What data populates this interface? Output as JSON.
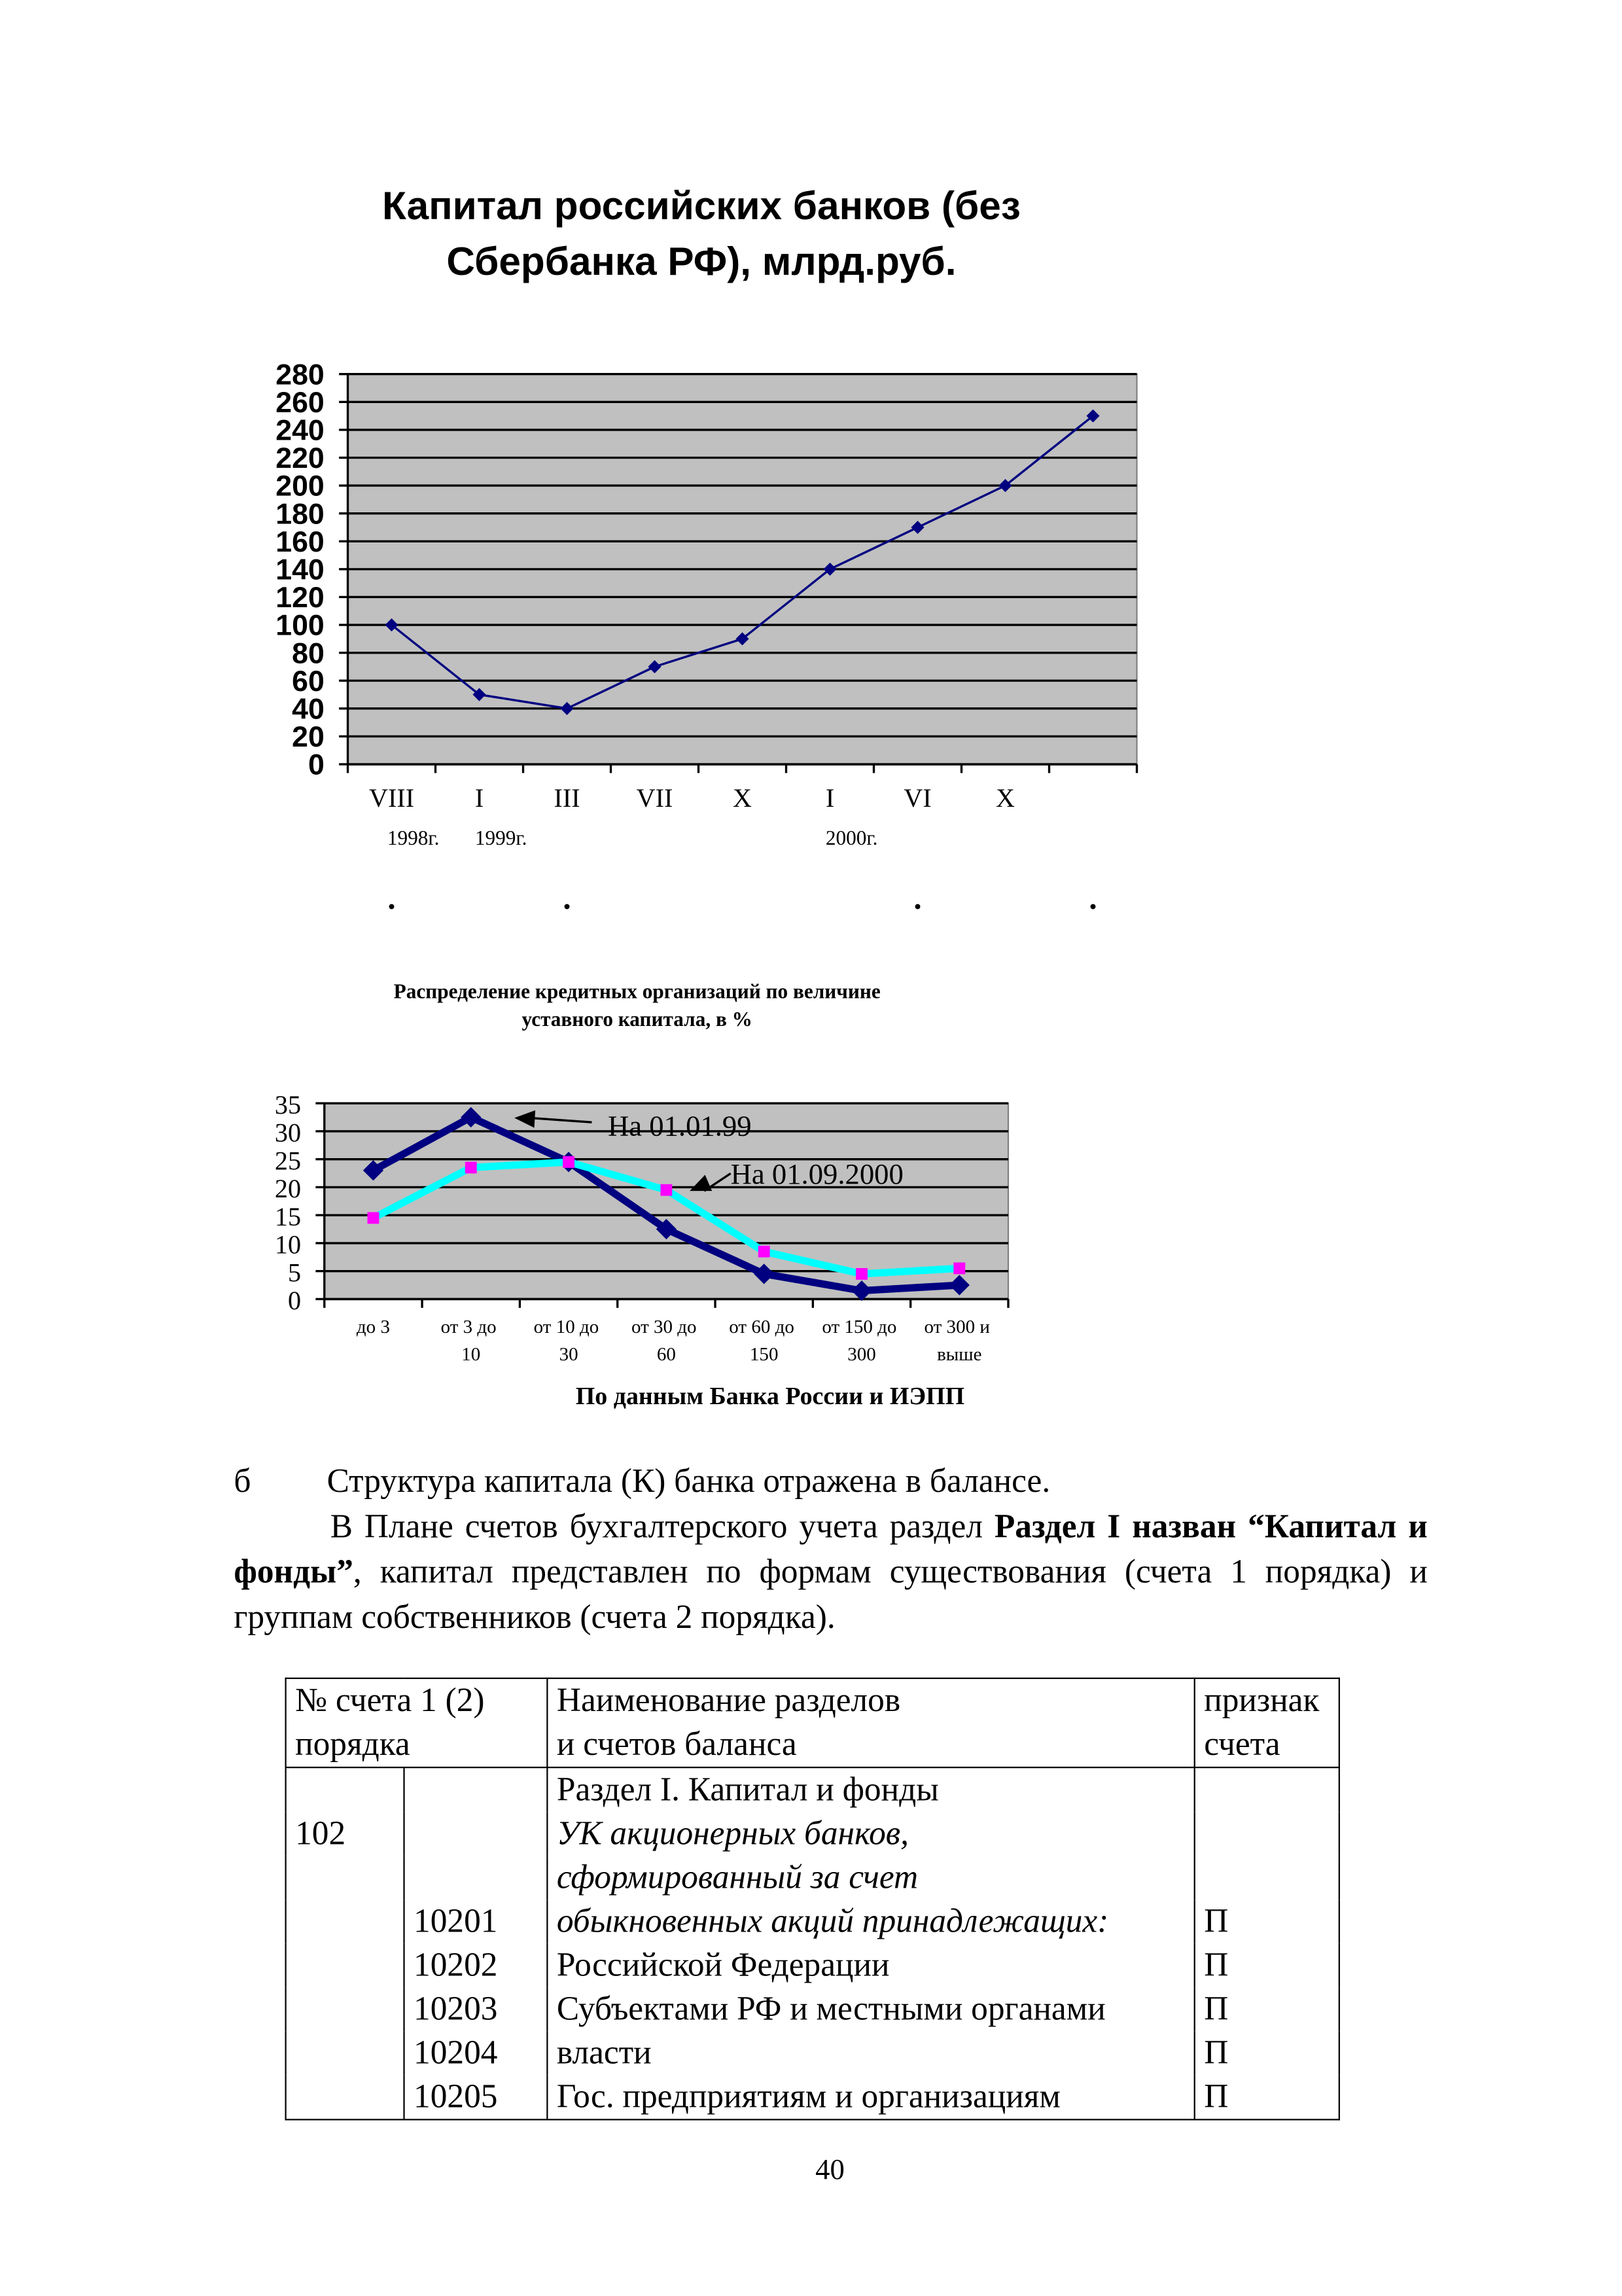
{
  "chart_data": [
    {
      "type": "line",
      "title": [
        "Капитал российских банков (без",
        "Сбербанка РФ), млрд.руб."
      ],
      "categories": [
        "VIII",
        "I",
        "III",
        "VII",
        "X",
        "I",
        "VI",
        "X",
        null
      ],
      "sublabels": [
        "1998г.",
        "1999г.",
        null,
        null,
        null,
        "2000г.",
        null,
        null,
        null
      ],
      "marks_below": [
        ".",
        ".",
        ".",
        "."
      ],
      "series": [
        {
          "name": null,
          "color": "#000080",
          "values": [
            100,
            50,
            40,
            70,
            90,
            140,
            170,
            200,
            250
          ]
        }
      ],
      "ylim": [
        0,
        280
      ],
      "yticks": [
        0,
        20,
        40,
        60,
        80,
        100,
        120,
        140,
        160,
        180,
        200,
        220,
        240,
        260,
        280
      ],
      "grid": true,
      "background": "#c0c0c0"
    },
    {
      "type": "line",
      "title": [
        "Распределение кредитных организаций по величине",
        "уставного капитала, в %"
      ],
      "categories": [
        "до 3",
        "от 3 до 10",
        "от 10 до 30",
        "от 30 до 60",
        "от 60 до 150",
        "от 150 до 300",
        "от 300 и выше"
      ],
      "series": [
        {
          "name": "На 01.01.99",
          "color": "#000080",
          "marker_color": "#000080",
          "values": [
            23,
            32.5,
            24.5,
            12.5,
            4.5,
            1.5,
            2.5
          ]
        },
        {
          "name": "На 01.09.2000",
          "color": "#00ffff",
          "marker_color": "#ff00ff",
          "values": [
            14.5,
            23.5,
            24.5,
            19.5,
            8.5,
            4.5,
            5.5
          ]
        }
      ],
      "ylim": [
        0,
        35
      ],
      "yticks": [
        0,
        5,
        10,
        15,
        20,
        25,
        30,
        35
      ],
      "grid": true,
      "background": "#c0c0c0",
      "source": "По данным Банка России и ИЭПП"
    }
  ],
  "text": {
    "marker": "б",
    "line1": "Структура капитала (К) банка отражена в балансе.",
    "paragraph": [
      "В Плане счетов бухгалтерского учета раздел ",
      "Раздел I назван “Капитал и фонды”",
      ", капитал представлен по формам существования (счета 1 порядка) и группам собственников (счета 2 порядка)."
    ]
  },
  "table": {
    "header": [
      [
        "№ счета 1 (2)",
        "порядка"
      ],
      [
        "Наименование разделов",
        "и счетов баланса"
      ],
      [
        "признак",
        "счета"
      ]
    ],
    "rows": [
      [
        null,
        null,
        "Раздел I. Капитал и фонды",
        null
      ],
      [
        "102",
        null,
        "УК акционерных банков,",
        null
      ],
      [
        null,
        null,
        "сформированный за счет",
        null
      ],
      [
        null,
        "10201",
        "обыкновенных акций принадлежащих:",
        "П"
      ],
      [
        null,
        "10202",
        "Российской Федерации",
        "П"
      ],
      [
        null,
        "10203",
        "Субъектами РФ и местными органами",
        "П"
      ],
      [
        null,
        "10204",
        "власти",
        "П"
      ],
      [
        null,
        "10205",
        "Гос. предприятиям и организациям",
        "П"
      ]
    ],
    "italic_rows": [
      1,
      2,
      3
    ]
  },
  "page_number": "40"
}
